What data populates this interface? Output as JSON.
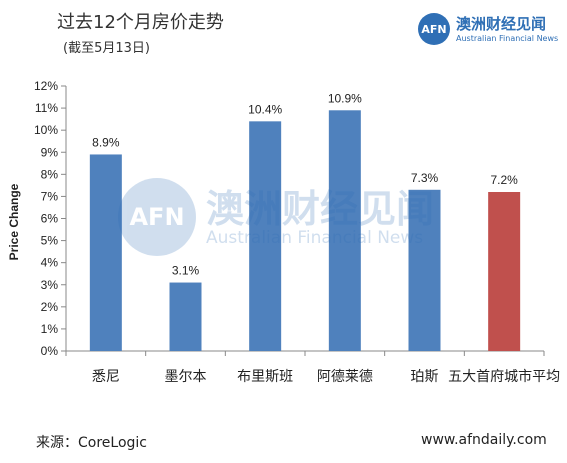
{
  "header": {
    "title": "过去12个月房价走势",
    "subtitle": "(截至5月13日)"
  },
  "logo": {
    "mark": "AFN",
    "name_cn": "澳洲财经见闻",
    "name_en": "Australian Financial News",
    "color": "#2f6fb5"
  },
  "watermark": {
    "mark": "AFN",
    "name_cn": "澳洲财经见闻",
    "name_en": "Australian Financial News"
  },
  "footer": {
    "source": "来源：CoreLogic",
    "website": "www.afndaily.com"
  },
  "chart_data": {
    "type": "bar",
    "title": "过去12个月房价走势",
    "subtitle": "(截至5月13日)",
    "xlabel": "",
    "ylabel": "Price Change",
    "categories": [
      "悉尼",
      "墨尔本",
      "布里斯班",
      "阿德莱德",
      "珀斯",
      "五大首府城市平均"
    ],
    "values": [
      8.9,
      3.1,
      10.4,
      10.9,
      7.3,
      7.2
    ],
    "data_labels": [
      "8.9%",
      "3.1%",
      "10.4%",
      "10.9%",
      "7.3%",
      "7.2%"
    ],
    "colors": [
      "#4f81bd",
      "#4f81bd",
      "#4f81bd",
      "#4f81bd",
      "#4f81bd",
      "#c0504d"
    ],
    "ylim": [
      0,
      12
    ],
    "yticks": [
      "0%",
      "1%",
      "2%",
      "3%",
      "4%",
      "5%",
      "6%",
      "7%",
      "8%",
      "9%",
      "10%",
      "11%",
      "12%"
    ],
    "grid": false,
    "legend": "none"
  }
}
